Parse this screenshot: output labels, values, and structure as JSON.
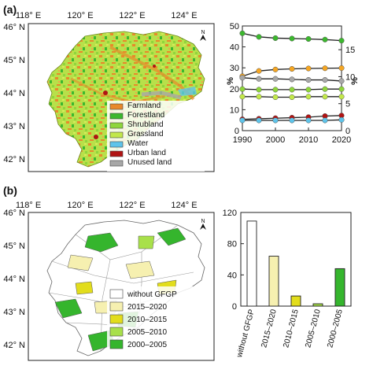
{
  "panel_a": {
    "label": "(a)",
    "map": {
      "lon_labels": [
        "118° E",
        "120° E",
        "122° E",
        "124° E"
      ],
      "lat_labels": [
        "46° N",
        "45° N",
        "44° N",
        "43° N",
        "42° N"
      ],
      "north": "N",
      "legend": [
        {
          "label": "Farmland",
          "color": "#e8892a"
        },
        {
          "label": "Forestland",
          "color": "#3cb82e"
        },
        {
          "label": "Shrubland",
          "color": "#8fd63b"
        },
        {
          "label": "Grassland",
          "color": "#c2e84a"
        },
        {
          "label": "Water",
          "color": "#5ec4ea"
        },
        {
          "label": "Urban land",
          "color": "#b01414"
        },
        {
          "label": "Unused land",
          "color": "#a8a8a8"
        }
      ]
    }
  },
  "panel_b": {
    "label": "(b)",
    "map": {
      "lon_labels": [
        "118° E",
        "120° E",
        "122° E",
        "124° E"
      ],
      "lat_labels": [
        "46° N",
        "45° N",
        "44° N",
        "43° N",
        "42° N"
      ],
      "north": "N",
      "legend": [
        {
          "label": "without GFGP",
          "color": "#ffffff"
        },
        {
          "label": "2015–2020",
          "color": "#f6f0b0"
        },
        {
          "label": "2010–2015",
          "color": "#e2dd1c"
        },
        {
          "label": "2005–2010",
          "color": "#a8e04a"
        },
        {
          "label": "2000–2005",
          "color": "#35b52d"
        }
      ]
    }
  },
  "chart_data": [
    {
      "type": "line",
      "x": [
        1990,
        1995,
        2000,
        2005,
        2010,
        2015,
        2020
      ],
      "xticks": [
        1990,
        2000,
        2010,
        2020
      ],
      "xlim": [
        1990,
        2020
      ],
      "ylabel": "%",
      "y2label": "%",
      "ylim": [
        0,
        50
      ],
      "yticks": [
        0,
        10,
        20,
        30,
        40,
        50
      ],
      "y2lim": [
        0,
        19.4
      ],
      "y2ticks": [
        0,
        5,
        10,
        15
      ],
      "grid": false,
      "series": [
        {
          "color": "#3cb82e",
          "axis": "left",
          "values": [
            46.5,
            44.8,
            44.2,
            44.0,
            43.8,
            43.5,
            43.0
          ]
        },
        {
          "color": "#f5a623",
          "axis": "left",
          "values": [
            26.0,
            28.5,
            29.2,
            29.5,
            29.7,
            29.8,
            29.9
          ]
        },
        {
          "color": "#a8a8a8",
          "axis": "right",
          "values": [
            9.8,
            9.6,
            9.6,
            9.5,
            9.4,
            9.4,
            9.2
          ]
        },
        {
          "color": "#8fd63b",
          "axis": "right",
          "values": [
            7.7,
            7.6,
            7.6,
            7.6,
            7.6,
            7.7,
            7.7
          ]
        },
        {
          "color": "#c2e84a",
          "axis": "right",
          "values": [
            6.3,
            6.3,
            6.2,
            6.2,
            6.3,
            6.3,
            6.3
          ]
        },
        {
          "color": "#b01414",
          "axis": "right",
          "values": [
            2.1,
            2.2,
            2.3,
            2.4,
            2.5,
            2.7,
            2.8
          ]
        },
        {
          "color": "#5ec4ea",
          "axis": "right",
          "values": [
            1.9,
            1.9,
            1.9,
            1.9,
            1.9,
            1.9,
            2.0
          ]
        }
      ]
    },
    {
      "type": "bar",
      "categories": [
        "without GFGP",
        "2015–2020",
        "2010–2015",
        "2005–2010",
        "2000–2005"
      ],
      "values": [
        109,
        64,
        13,
        3,
        48
      ],
      "colors": [
        "#ffffff",
        "#f6f0b0",
        "#e2dd1c",
        "#a8e04a",
        "#35b52d"
      ],
      "ylim": [
        0,
        120
      ],
      "yticks": [
        0,
        40,
        80,
        120
      ],
      "grid": false
    }
  ]
}
